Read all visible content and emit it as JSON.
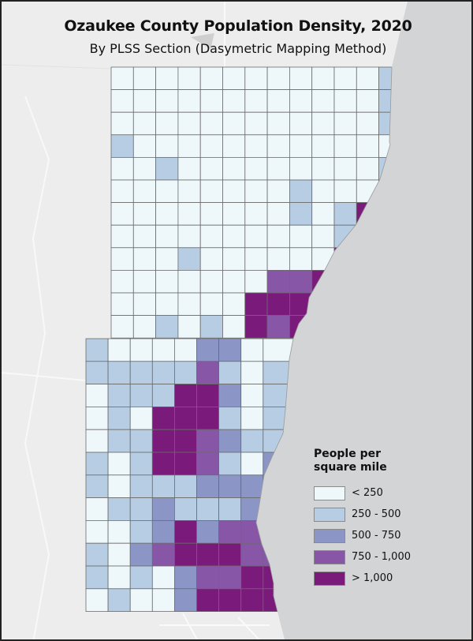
{
  "title": "Ozaukee County Population Density, 2020",
  "subtitle": "By PLSS Section (Dasymetric Mapping Method)",
  "legend": {
    "title": "People per square mile",
    "classes": [
      {
        "label": "< 250",
        "color": "#eef7fa"
      },
      {
        "label": "250 - 500",
        "color": "#b7cde3"
      },
      {
        "label": "500 - 750",
        "color": "#8c96c6"
      },
      {
        "label": "750 - 1,000",
        "color": "#8856a7"
      },
      {
        "label": "> 1,000",
        "color": "#7a1a7a"
      }
    ]
  },
  "colors": {
    "lake": "#d3d4d6",
    "land": "#ededed",
    "grid_line": "#6b6b6b"
  },
  "sections": {
    "north": [
      [
        0,
        0,
        0,
        0,
        0,
        0,
        0,
        0,
        0,
        0,
        0,
        0,
        1
      ],
      [
        0,
        0,
        0,
        0,
        0,
        0,
        0,
        0,
        0,
        0,
        0,
        0,
        1
      ],
      [
        0,
        0,
        0,
        0,
        0,
        0,
        0,
        0,
        0,
        0,
        0,
        0,
        1
      ],
      [
        1,
        0,
        0,
        0,
        0,
        0,
        0,
        0,
        0,
        0,
        0,
        0,
        0
      ],
      [
        0,
        0,
        1,
        0,
        0,
        0,
        0,
        0,
        0,
        0,
        0,
        0,
        1
      ],
      [
        0,
        0,
        0,
        0,
        0,
        0,
        0,
        0,
        1,
        0,
        0,
        0,
        0
      ],
      [
        0,
        0,
        0,
        0,
        0,
        0,
        0,
        0,
        1,
        0,
        1,
        4,
        4
      ],
      [
        0,
        0,
        0,
        0,
        0,
        0,
        0,
        0,
        0,
        0,
        1,
        1,
        1
      ],
      [
        0,
        0,
        0,
        1,
        0,
        0,
        0,
        0,
        0,
        0,
        4,
        4,
        4
      ],
      [
        0,
        0,
        0,
        0,
        0,
        0,
        0,
        3,
        3,
        4,
        4,
        4,
        4
      ],
      [
        0,
        0,
        0,
        0,
        0,
        0,
        4,
        4,
        4,
        4,
        4,
        4,
        4
      ],
      [
        0,
        0,
        1,
        0,
        1,
        0,
        4,
        3,
        4,
        4,
        4,
        4,
        4
      ]
    ],
    "south": [
      [
        1,
        0,
        0,
        0,
        0,
        2,
        2,
        0,
        0
      ],
      [
        1,
        1,
        1,
        1,
        1,
        3,
        1,
        0,
        1
      ],
      [
        0,
        1,
        1,
        1,
        4,
        4,
        2,
        0,
        1
      ],
      [
        0,
        1,
        0,
        4,
        4,
        4,
        1,
        0,
        1
      ],
      [
        0,
        1,
        1,
        4,
        4,
        3,
        2,
        1,
        1
      ],
      [
        1,
        0,
        1,
        4,
        4,
        3,
        1,
        0,
        2
      ],
      [
        1,
        0,
        1,
        1,
        1,
        2,
        2,
        2,
        2
      ],
      [
        0,
        1,
        1,
        2,
        1,
        1,
        1,
        2,
        2
      ],
      [
        0,
        0,
        1,
        2,
        4,
        2,
        3,
        3,
        3
      ],
      [
        1,
        0,
        2,
        3,
        4,
        4,
        4,
        3,
        3
      ],
      [
        1,
        0,
        1,
        0,
        2,
        3,
        3,
        4,
        4
      ],
      [
        0,
        1,
        0,
        0,
        2,
        4,
        4,
        4,
        4
      ]
    ]
  }
}
